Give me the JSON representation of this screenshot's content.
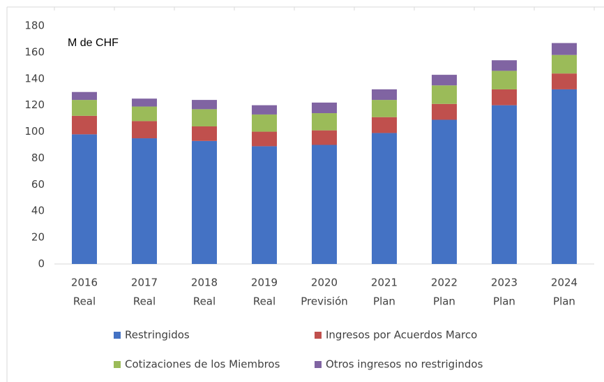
{
  "chart_data": {
    "type": "stacked_bar",
    "annotation": "M de CHF",
    "categories": [
      [
        "2016",
        "Real"
      ],
      [
        "2017",
        "Real"
      ],
      [
        "2018",
        "Real"
      ],
      [
        "2019",
        "Real"
      ],
      [
        "2020",
        "Previsión"
      ],
      [
        "2021",
        "Plan"
      ],
      [
        "2022",
        "Plan"
      ],
      [
        "2023",
        "Plan"
      ],
      [
        "2024",
        "Plan"
      ]
    ],
    "series": [
      {
        "name": "Restringidos",
        "color": "#4472c4",
        "values": [
          98,
          95,
          93,
          89,
          90,
          99,
          109,
          120,
          132
        ]
      },
      {
        "name": "Ingresos por Acuerdos Marco",
        "color": "#c0504d",
        "values": [
          14,
          13,
          11,
          11,
          11,
          12,
          12,
          12,
          12
        ]
      },
      {
        "name": "Cotizaciones de los Miembros",
        "color": "#9bbb59",
        "values": [
          12,
          11,
          13,
          13,
          13,
          13,
          14,
          14,
          14
        ]
      },
      {
        "name": "Otros ingresos no restrigindos",
        "color": "#8064a2",
        "values": [
          6,
          6,
          7,
          7,
          8,
          8,
          8,
          8,
          9
        ]
      }
    ],
    "ylim": [
      0,
      180
    ],
    "yticks": [
      0,
      20,
      40,
      60,
      80,
      100,
      120,
      140,
      160,
      180
    ],
    "grid": false
  }
}
